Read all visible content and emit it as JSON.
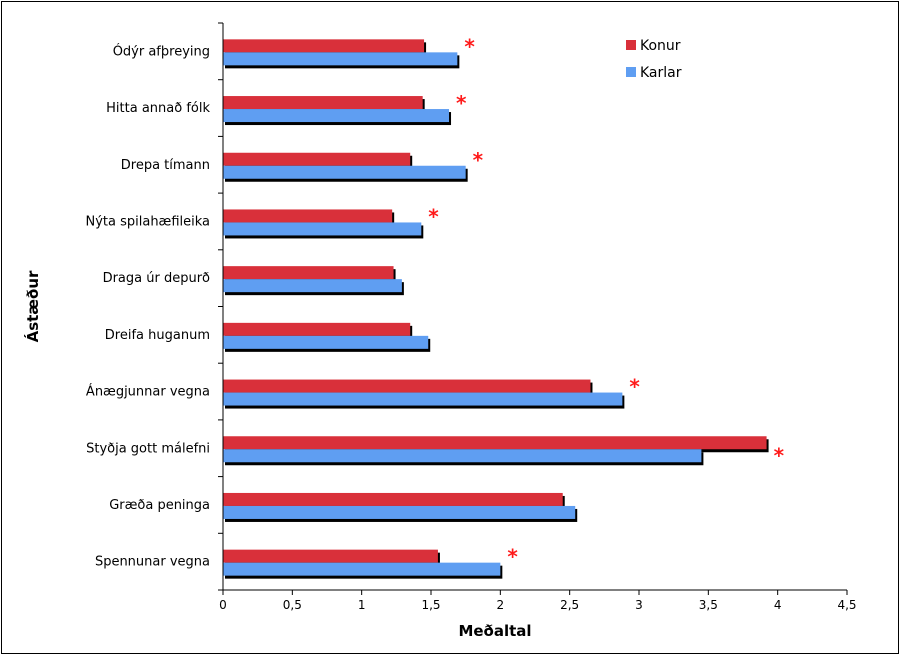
{
  "chart_data": {
    "type": "bar",
    "orientation": "horizontal",
    "xlabel": "Meðaltal",
    "ylabel": "Ástæður",
    "xlim": [
      0,
      4.5
    ],
    "x_ticks": [
      "0",
      "0,5",
      "1",
      "1,5",
      "2",
      "2,5",
      "3",
      "3,5",
      "4",
      "4,5"
    ],
    "x_tick_values": [
      0,
      0.5,
      1,
      1.5,
      2,
      2.5,
      3,
      3.5,
      4,
      4.5
    ],
    "grid": false,
    "legend_position": "top-right",
    "categories": [
      "Ódýr afþreying",
      "Hitta annað fólk",
      "Drepa tímann",
      "Nýta spilahæfileika",
      "Draga úr depurð",
      "Dreifa huganum",
      "Ánægjunnar vegna",
      "Styðja gott málefni",
      "Græða peninga",
      "Spennunar vegna"
    ],
    "series": [
      {
        "name": "Konur",
        "color": "#d9303a",
        "values": [
          1.45,
          1.44,
          1.35,
          1.22,
          1.23,
          1.35,
          2.65,
          3.92,
          2.45,
          1.55
        ]
      },
      {
        "name": "Karlar",
        "color": "#5f9ef2",
        "values": [
          1.69,
          1.63,
          1.75,
          1.43,
          1.29,
          1.48,
          2.88,
          3.45,
          2.54,
          2.0
        ]
      }
    ],
    "significance_marker": "*",
    "significance_color": "#ff1a1a",
    "significant": [
      true,
      true,
      true,
      true,
      false,
      false,
      true,
      true,
      false,
      true
    ]
  }
}
